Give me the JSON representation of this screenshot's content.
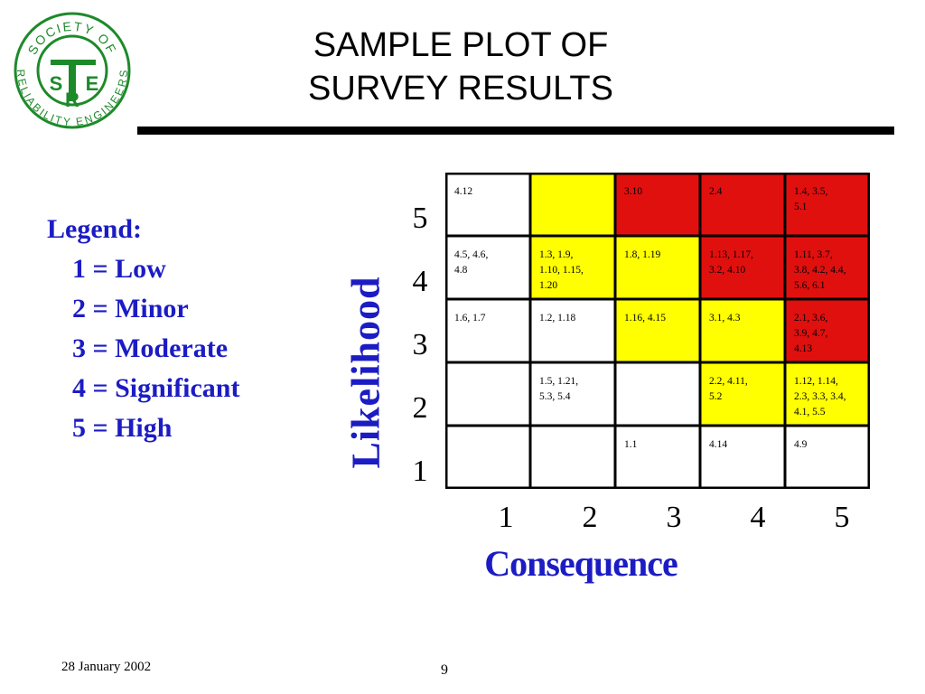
{
  "slide": {
    "title_line1": "SAMPLE PLOT OF",
    "title_line2": "SURVEY RESULTS",
    "date": "28 January 2002",
    "page_number": "9"
  },
  "logo": {
    "text_top": "SOCIETY OF",
    "text_bottom": "RELIABILITY ENGINEERS",
    "letters": [
      "S",
      "R",
      "E"
    ],
    "color": "#1d8a2a"
  },
  "legend": {
    "title": "Legend:",
    "items": [
      "1 = Low",
      "2 = Minor",
      "3 = Moderate",
      "4 = Significant",
      "5 = High"
    ]
  },
  "chart_data": {
    "type": "heatmap",
    "xlabel": "Consequence",
    "ylabel": "Likelihood",
    "x_ticks": [
      "1",
      "2",
      "3",
      "4",
      "5"
    ],
    "y_ticks": [
      "5",
      "4",
      "3",
      "2",
      "1"
    ],
    "colors": {
      "white": "#ffffff",
      "yellow": "#ffff00",
      "red": "#e0100f"
    },
    "rows": [
      {
        "likelihood": "5",
        "cells": [
          {
            "consequence": "1",
            "color": "white",
            "items": "4.12"
          },
          {
            "consequence": "2",
            "color": "yellow",
            "items": ""
          },
          {
            "consequence": "3",
            "color": "red",
            "items": "3.10"
          },
          {
            "consequence": "4",
            "color": "red",
            "items": "2.4"
          },
          {
            "consequence": "5",
            "color": "red",
            "items": "1.4, 3.5,\n5.1"
          }
        ]
      },
      {
        "likelihood": "4",
        "cells": [
          {
            "consequence": "1",
            "color": "white",
            "items": "4.5, 4.6,\n4.8"
          },
          {
            "consequence": "2",
            "color": "yellow",
            "items": "1.3, 1.9,\n1.10, 1.15,\n1.20"
          },
          {
            "consequence": "3",
            "color": "yellow",
            "items": "1.8, 1.19"
          },
          {
            "consequence": "4",
            "color": "red",
            "items": "1.13, 1.17,\n3.2, 4.10"
          },
          {
            "consequence": "5",
            "color": "red",
            "items": "1.11, 3.7,\n3.8, 4.2, 4.4,\n5.6, 6.1"
          }
        ]
      },
      {
        "likelihood": "3",
        "cells": [
          {
            "consequence": "1",
            "color": "white",
            "items": "1.6, 1.7"
          },
          {
            "consequence": "2",
            "color": "white",
            "items": "1.2, 1.18"
          },
          {
            "consequence": "3",
            "color": "yellow",
            "items": "1.16, 4.15"
          },
          {
            "consequence": "4",
            "color": "yellow",
            "items": "3.1, 4.3"
          },
          {
            "consequence": "5",
            "color": "red",
            "items": "2.1, 3.6,\n3.9, 4.7,\n4.13"
          }
        ]
      },
      {
        "likelihood": "2",
        "cells": [
          {
            "consequence": "1",
            "color": "white",
            "items": ""
          },
          {
            "consequence": "2",
            "color": "white",
            "items": "1.5, 1.21,\n5.3, 5.4"
          },
          {
            "consequence": "3",
            "color": "white",
            "items": ""
          },
          {
            "consequence": "4",
            "color": "yellow",
            "items": "2.2, 4.11,\n5.2"
          },
          {
            "consequence": "5",
            "color": "yellow",
            "items": "1.12, 1.14,\n2.3, 3.3, 3.4,\n4.1, 5.5"
          }
        ]
      },
      {
        "likelihood": "1",
        "cells": [
          {
            "consequence": "1",
            "color": "white",
            "items": ""
          },
          {
            "consequence": "2",
            "color": "white",
            "items": ""
          },
          {
            "consequence": "3",
            "color": "white",
            "items": "1.1"
          },
          {
            "consequence": "4",
            "color": "white",
            "items": "4.14"
          },
          {
            "consequence": "5",
            "color": "white",
            "items": "4.9"
          }
        ]
      }
    ]
  }
}
